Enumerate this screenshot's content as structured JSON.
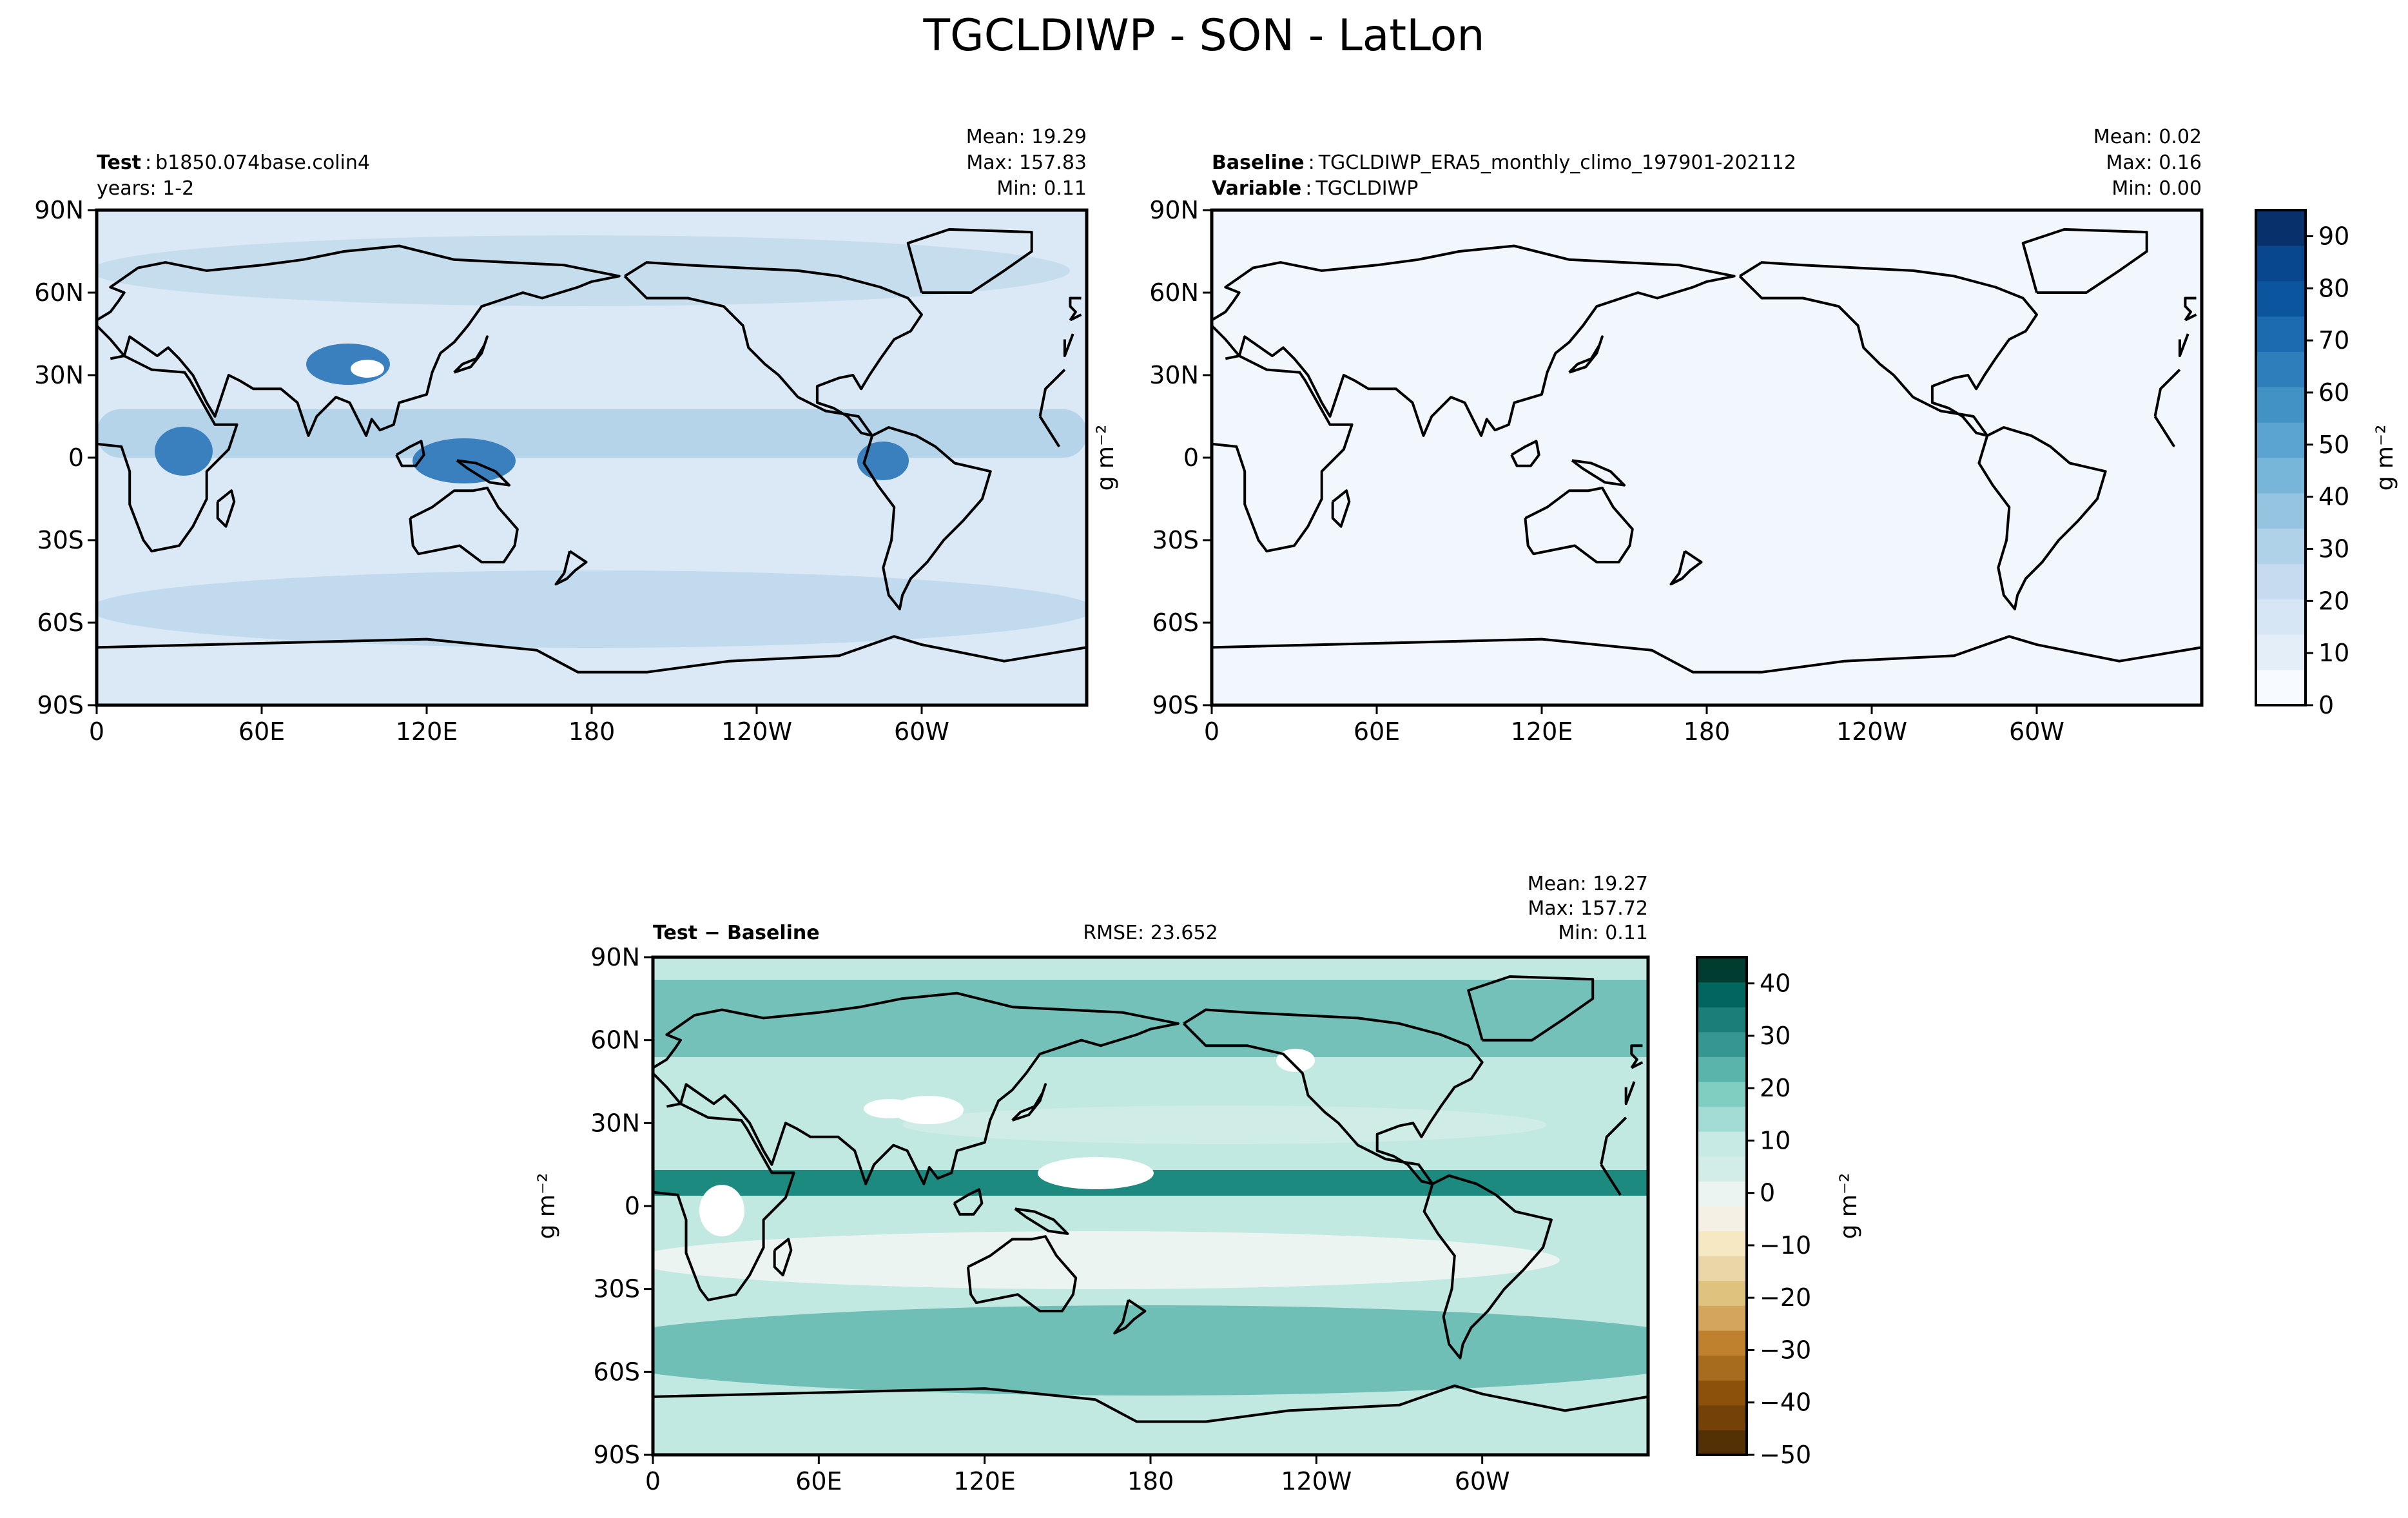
{
  "figure": {
    "title": "TGCLDIWP - SON - LatLon"
  },
  "colors": {
    "ocean_test": "#dbe9f6",
    "ocean_base": "#f2f7fd",
    "ocean_diff": "#c2e8e2",
    "coast": "#000000"
  },
  "chart_data": [
    {
      "type": "heatmap",
      "panel": "test",
      "label_bold": "Test",
      "label_text": "b1850.074base.colin4",
      "sublabel": "years: 1-2",
      "stats": [
        "Mean: 19.29",
        "Max: 157.83",
        "Min:  0.11"
      ],
      "x_ticks": [
        "0",
        "60E",
        "120E",
        "180",
        "120W",
        "60W"
      ],
      "y_ticks": [
        "90N",
        "60N",
        "30N",
        "0",
        "30S",
        "60S",
        "90S"
      ],
      "xlim": [
        0,
        360
      ],
      "ylim": [
        -90,
        90
      ]
    },
    {
      "type": "heatmap",
      "panel": "baseline",
      "label_bold": "Baseline",
      "label_text": "TGCLDIWP_ERA5_monthly_climo_197901-202112",
      "label2_bold": "Variable",
      "label2_text": "TGCLDIWP",
      "stats": [
        "Mean:  0.02",
        "Max:  0.16",
        "Min:  0.00"
      ],
      "x_ticks": [
        "0",
        "60E",
        "120E",
        "180",
        "120W",
        "60W"
      ],
      "y_ticks": [
        "90N",
        "60N",
        "30N",
        "0",
        "30S",
        "60S",
        "90S"
      ],
      "ylabel": "g m⁻²",
      "xlim": [
        0,
        360
      ],
      "ylim": [
        -90,
        90
      ]
    },
    {
      "type": "heatmap",
      "panel": "difference",
      "label_bold": "Test − Baseline",
      "rmse": "RMSE: 23.652",
      "stats": [
        "Mean: 19.27",
        "Max: 157.72",
        "Min:  0.11"
      ],
      "x_ticks": [
        "0",
        "60E",
        "120E",
        "180",
        "120W",
        "60W"
      ],
      "y_ticks": [
        "90N",
        "60N",
        "30N",
        "0",
        "30S",
        "60S",
        "90S"
      ],
      "ylabel": "g m⁻²",
      "xlim": [
        0,
        360
      ],
      "ylim": [
        -90,
        90
      ]
    }
  ],
  "colorbars": {
    "top": {
      "label": "g m⁻²",
      "ticks": [
        0,
        10,
        20,
        30,
        40,
        50,
        60,
        70,
        80,
        90
      ],
      "range": [
        0,
        95
      ],
      "levels": [
        "#f7fbff",
        "#e3eef9",
        "#d6e6f4",
        "#c6dbef",
        "#b0d2e8",
        "#94c4df",
        "#77b5d9",
        "#5ba3d0",
        "#4292c6",
        "#2f7ebc",
        "#1c6aaf",
        "#0b559f",
        "#08468e",
        "#08306b"
      ]
    },
    "bottom": {
      "label": "g m⁻²",
      "ticks": [
        40,
        30,
        20,
        10,
        0,
        -10,
        -20,
        -30,
        -40,
        -50
      ],
      "range": [
        -50,
        45
      ],
      "levels": [
        "#543005",
        "#744108",
        "#8c510a",
        "#a86c1f",
        "#bf812d",
        "#d3a55d",
        "#dfc27d",
        "#ead7a8",
        "#f6e8c3",
        "#f5f0e4",
        "#ecf4f2",
        "#d2ece8",
        "#c7eae5",
        "#a2dcd4",
        "#80cdc1",
        "#5ab4ac",
        "#35978f",
        "#1c7f77",
        "#01665e",
        "#003c30"
      ]
    }
  }
}
